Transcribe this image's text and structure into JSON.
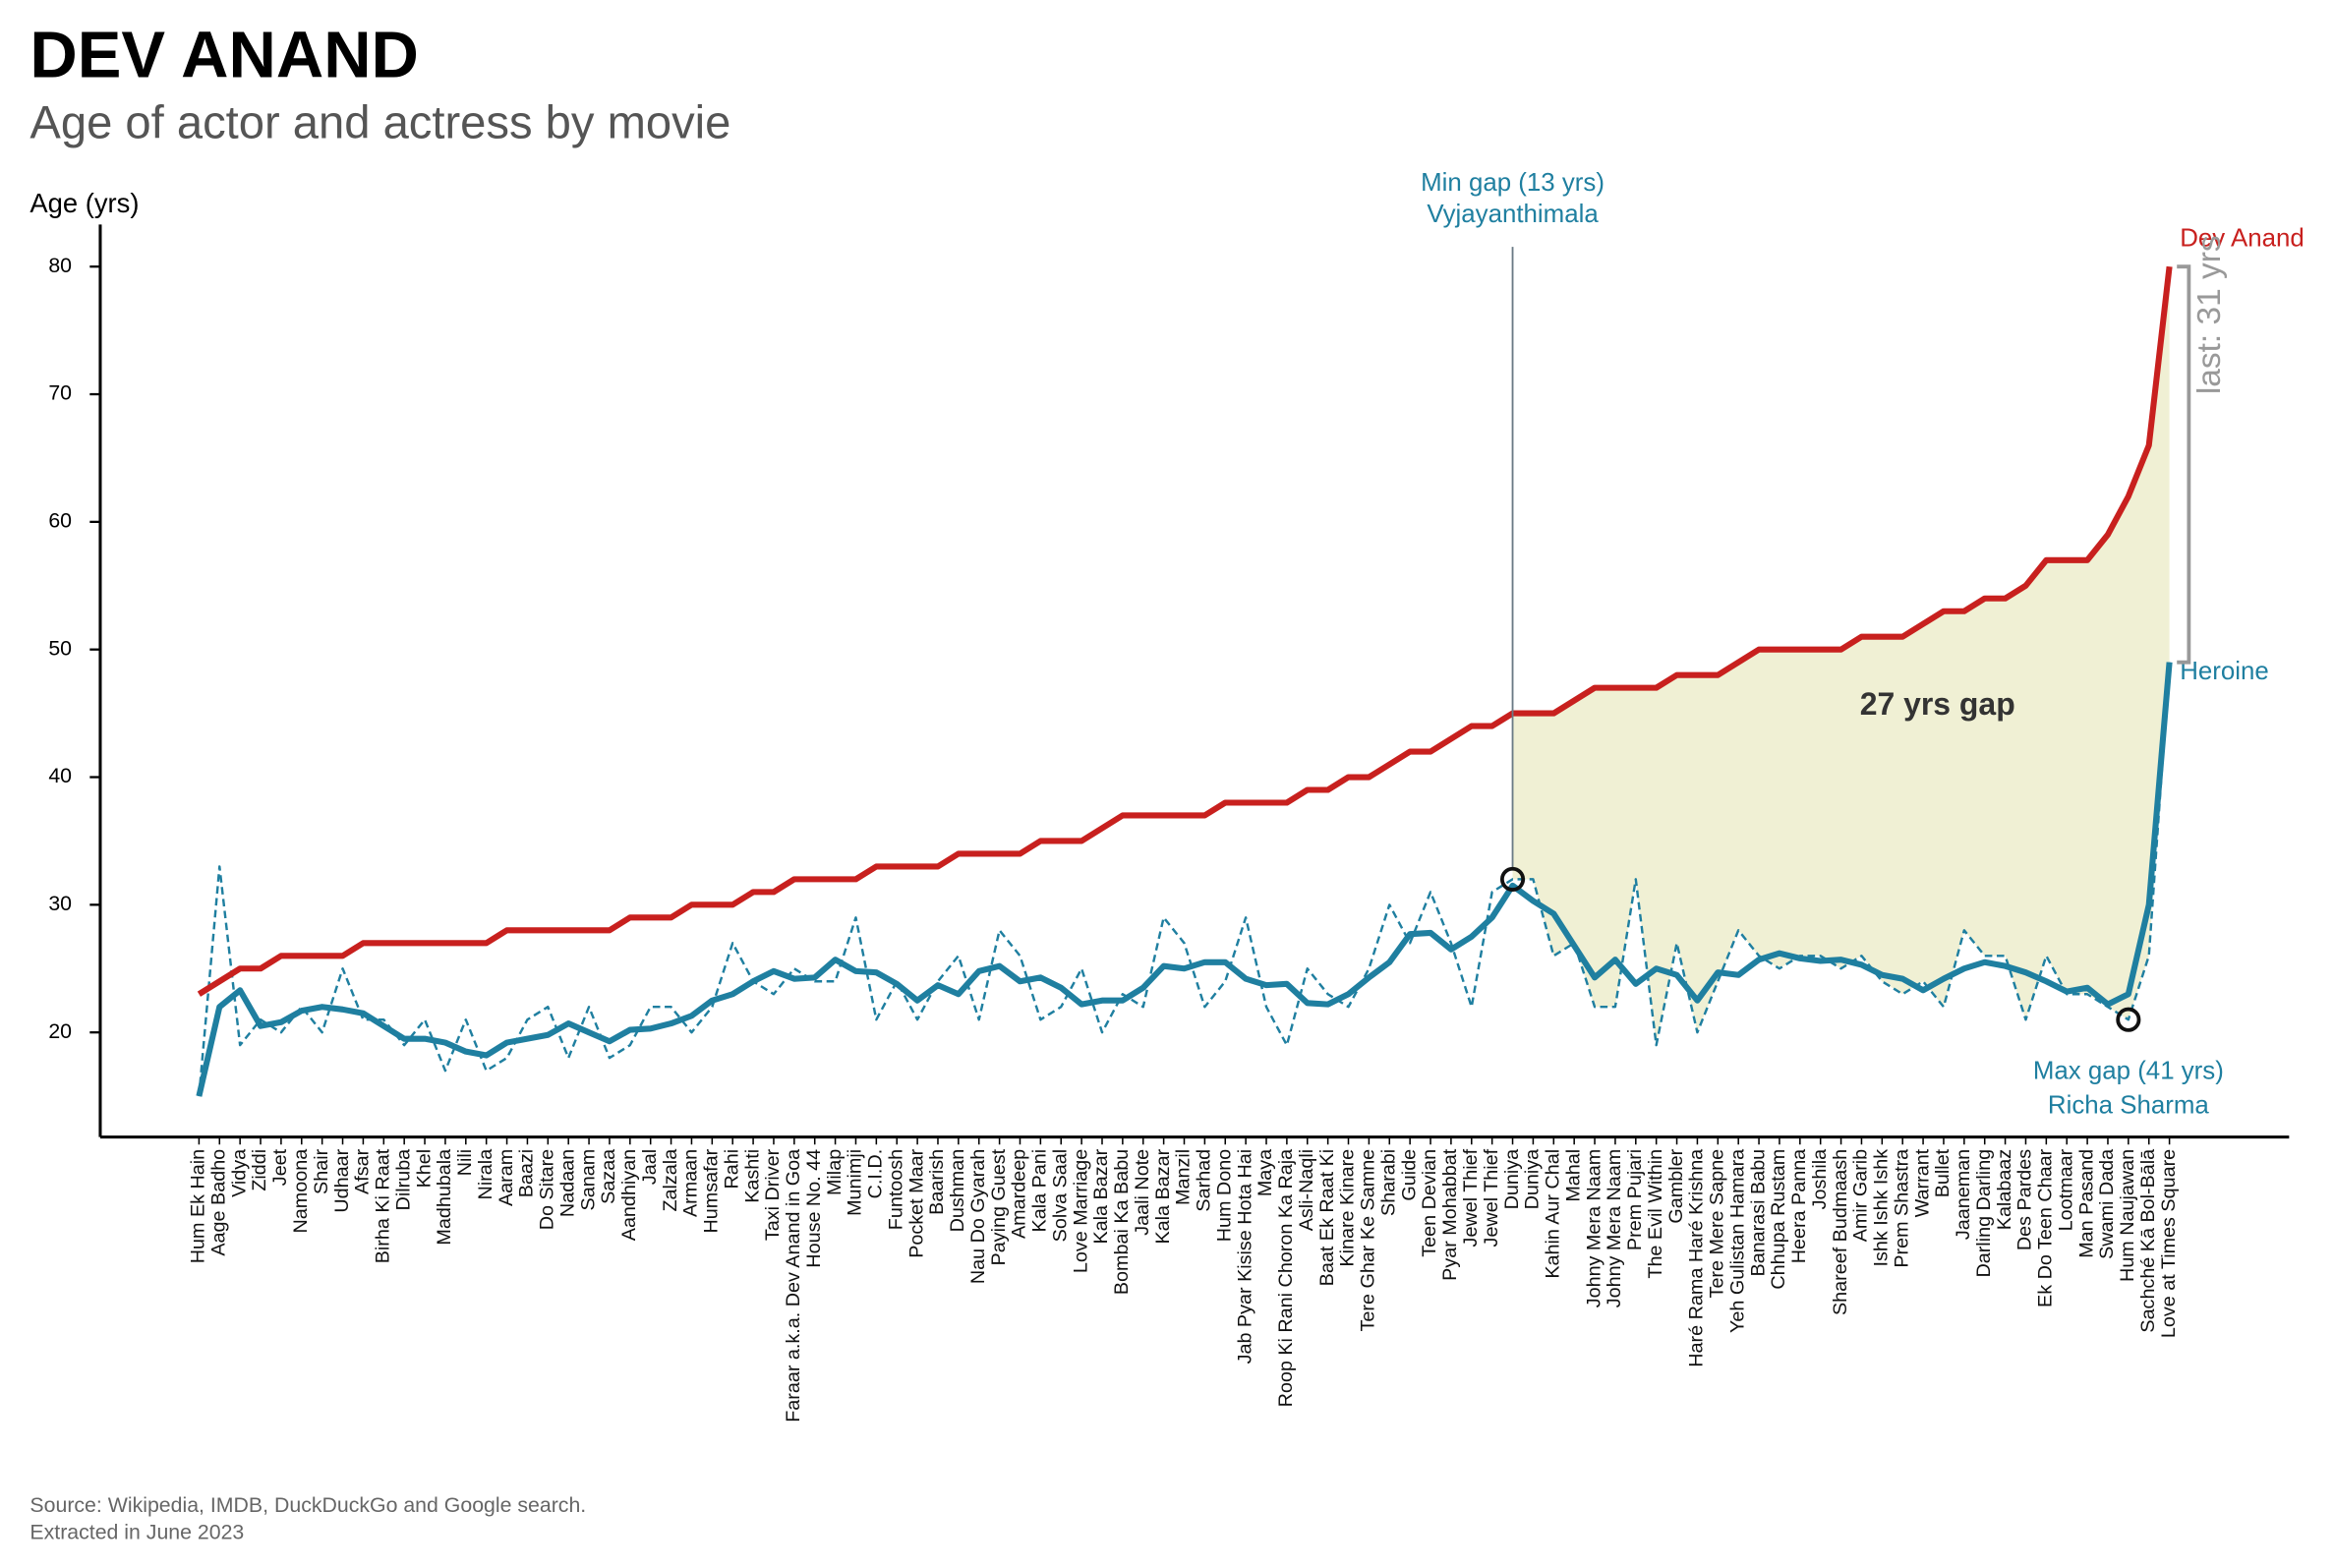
{
  "chart_data": {
    "type": "line",
    "title": "DEV ANAND",
    "subtitle": "Age of actor and actress by movie",
    "y_label": "Age (yrs)",
    "source": [
      "Source: Wikipedia, IMDB, DuckDuckGo and Google search.",
      "Extracted in June 2023"
    ],
    "categories": [
      "Hum Ek Hain",
      "Aage Badho",
      "Vidya",
      "Ziddi",
      "Jeet",
      "Namoona",
      "Shair",
      "Udhaar",
      "Afsar",
      "Birha Ki Raat",
      "Dilruba",
      "Khel",
      "Madhubala",
      "Nili",
      "Nirala",
      "Aaram",
      "Baazi",
      "Do Sitare",
      "Nadaan",
      "Sanam",
      "Sazaa",
      "Aandhiyan",
      "Jaal",
      "Zalzala",
      "Armaan",
      "Humsafar",
      "Rahi",
      "Kashti",
      "Taxi Driver",
      "Faraar a.k.a. Dev Anand in Goa",
      "House No. 44",
      "Milap",
      "Munimji",
      "C.I.D.",
      "Funtoosh",
      "Pocket Maar",
      "Baarish",
      "Dushman",
      "Nau Do Gyarah",
      "Paying Guest",
      "Amardeep",
      "Kala Pani",
      "Solva Saal",
      "Love Marriage",
      "Kala Bazar",
      "Bombai Ka Babu",
      "Jaali Note",
      "Kala Bazar",
      "Manzil",
      "Sarhad",
      "Hum Dono",
      "Jab Pyar Kisise Hota Hai",
      "Maya",
      "Roop Ki Rani Choron Ka Raja",
      "Asli-Naqli",
      "Baat Ek Raat Ki",
      "Kinare Kinare",
      "Tere Ghar Ke Samne",
      "Sharabi",
      "Guide",
      "Teen Devian",
      "Pyar Mohabbat",
      "Jewel Thief",
      "Jewel Thief",
      "Duniya",
      "Duniya",
      "Kahin Aur Chal",
      "Mahal",
      "Johny Mera Naam",
      "Johny Mera Naam",
      "Prem Pujari",
      "The Evil Within",
      "Gambler",
      "Haré Rama Haré Krishna",
      "Tere Mere Sapne",
      "Yeh Gulistan Hamara",
      "Banarasi Babu",
      "Chhupa Rustam",
      "Heera Panna",
      "Joshila",
      "Shareef Budmaash",
      "Amir Garib",
      "Ishk Ishk Ishk",
      "Prem Shastra",
      "Warrant",
      "Bullet",
      "Jaaneman",
      "Darling Darling",
      "Kalabaaz",
      "Des Pardes",
      "Ek Do Teen Chaar",
      "Lootmaar",
      "Man Pasand",
      "Swami Dada",
      "Hum Naujawan",
      "Sachché Kā Bol-Bālā",
      "Love at Times Square"
    ],
    "series": [
      {
        "name": "Dev Anand",
        "color": "#c8201e",
        "values": [
          23,
          24,
          25,
          25,
          26,
          26,
          26,
          26,
          27,
          27,
          27,
          27,
          27,
          27,
          27,
          28,
          28,
          28,
          28,
          28,
          28,
          29,
          29,
          29,
          30,
          30,
          30,
          31,
          31,
          32,
          32,
          32,
          32,
          33,
          33,
          33,
          33,
          34,
          34,
          34,
          34,
          35,
          35,
          35,
          36,
          37,
          37,
          37,
          37,
          37,
          38,
          38,
          38,
          38,
          39,
          39,
          40,
          40,
          41,
          42,
          42,
          43,
          44,
          44,
          45,
          45,
          45,
          46,
          47,
          47,
          47,
          47,
          48,
          48,
          48,
          49,
          50,
          50,
          50,
          50,
          50,
          51,
          51,
          51,
          52,
          53,
          53,
          54,
          54,
          55,
          57,
          57,
          57,
          59,
          62,
          66,
          80
        ]
      },
      {
        "name": "Heroine",
        "color": "#1f7fa0",
        "values": [
          15,
          22,
          23.3,
          20.5,
          20.8,
          21.7,
          22,
          21.8,
          21.5,
          20.5,
          19.5,
          19.5,
          19.2,
          18.5,
          18.2,
          19.2,
          19.5,
          19.8,
          20.7,
          20,
          19.3,
          20.2,
          20.3,
          20.7,
          21.3,
          22.5,
          23,
          24,
          24.8,
          24.2,
          24.3,
          25.7,
          24.8,
          24.7,
          23.8,
          22.5,
          23.7,
          23,
          24.8,
          25.2,
          24,
          24.3,
          23.5,
          22.2,
          22.5,
          22.5,
          23.5,
          25.2,
          25,
          25.5,
          25.5,
          24.2,
          23.7,
          23.8,
          22.3,
          22.2,
          23,
          24.3,
          25.5,
          27.7,
          27.8,
          26.5,
          27.5,
          29,
          31.5,
          30.3,
          29.3,
          26.8,
          24.3,
          25.7,
          23.8,
          25,
          24.5,
          22.5,
          24.7,
          24.5,
          25.7,
          26.2,
          25.8,
          25.6,
          25.7,
          25.3,
          24.5,
          24.2,
          23.3,
          24.2,
          25,
          25.5,
          25.2,
          24.7,
          24,
          23.2,
          23.5,
          22.2,
          23,
          30,
          49
        ]
      },
      {
        "color": "#1f7fa0",
        "dashed": true,
        "values": [
          15,
          33,
          19,
          21,
          20,
          22,
          20,
          25,
          21,
          21,
          19,
          21,
          17,
          21,
          17,
          18,
          21,
          22,
          18,
          22,
          18,
          19,
          22,
          22,
          20,
          22,
          27,
          24,
          23,
          25,
          24,
          24,
          29,
          21,
          24,
          21,
          24,
          26,
          21,
          28,
          26,
          21,
          22,
          25,
          20,
          23,
          22,
          29,
          27,
          22,
          24,
          29,
          22,
          19,
          25,
          23,
          22,
          25,
          30,
          27,
          31,
          27,
          22,
          31,
          32,
          32,
          26,
          27,
          22,
          22,
          32,
          19,
          27,
          20,
          24,
          28,
          26,
          25,
          26,
          26,
          25,
          26,
          24,
          23,
          24,
          22,
          28,
          26,
          26,
          21,
          26,
          23,
          23,
          22,
          21,
          26,
          49
        ]
      }
    ],
    "ylim": [
      11.8,
      83.3
    ],
    "yticks": [
      20,
      30,
      40,
      50,
      60,
      70,
      80
    ],
    "fill_color": "#f0f0d4",
    "annotations": [
      {
        "lines": [
          "Min gap (13 yrs)",
          "Vyjayanthimala"
        ],
        "index": 64
      },
      {
        "lines": [
          "Max gap (41 yrs)",
          "Richa Sharma"
        ],
        "index": 94
      }
    ],
    "gap_label": "27 yrs gap",
    "last_label": "last: 31 yrs"
  }
}
